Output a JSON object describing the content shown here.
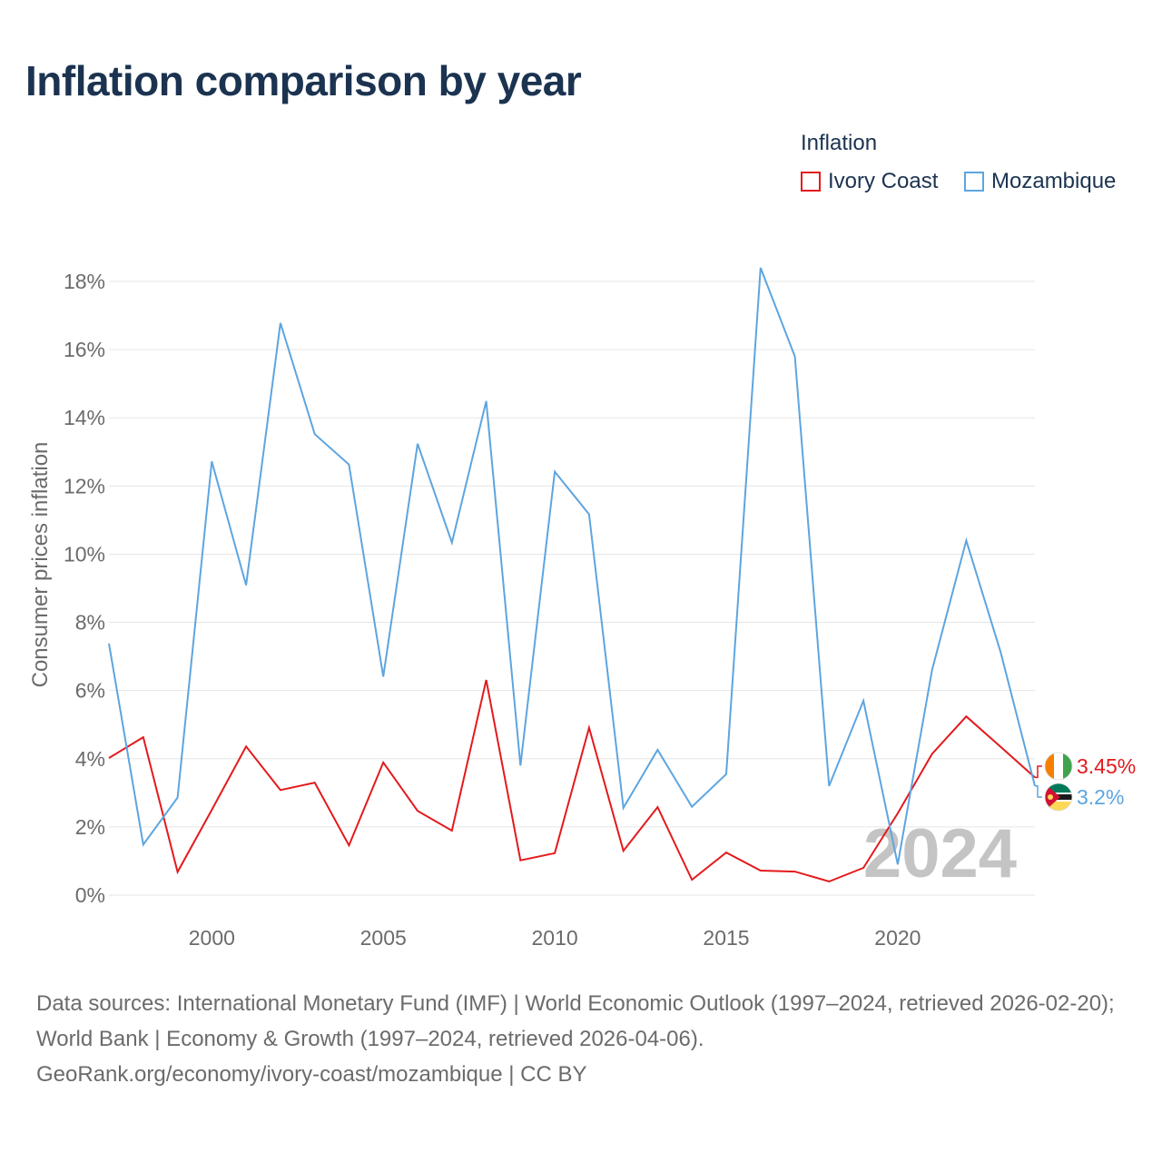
{
  "title": "Inflation comparison by year",
  "legend": {
    "title": "Inflation",
    "items": [
      {
        "name": "Ivory Coast",
        "color": "#e31a1c"
      },
      {
        "name": "Mozambique",
        "color": "#5da5e0"
      }
    ]
  },
  "chart_data": {
    "type": "line",
    "title": "Inflation comparison by year",
    "xlabel": "",
    "ylabel": "Consumer prices inflation",
    "x": [
      1997,
      1998,
      1999,
      2000,
      2001,
      2002,
      2003,
      2004,
      2005,
      2006,
      2007,
      2008,
      2009,
      2010,
      2011,
      2012,
      2013,
      2014,
      2015,
      2016,
      2017,
      2018,
      2019,
      2020,
      2021,
      2022,
      2023,
      2024
    ],
    "xlim": [
      1997,
      2024
    ],
    "ylim": [
      0,
      18
    ],
    "yticks": [
      0,
      2,
      4,
      6,
      8,
      10,
      12,
      14,
      16,
      18
    ],
    "ytick_labels": [
      "0%",
      "2%",
      "4%",
      "6%",
      "8%",
      "10%",
      "12%",
      "14%",
      "16%",
      "18%"
    ],
    "xticks": [
      2000,
      2005,
      2010,
      2015,
      2020
    ],
    "xtick_labels": [
      "2000",
      "2005",
      "2010",
      "2015",
      "2020"
    ],
    "grid": true,
    "year_watermark": "2024",
    "series": [
      {
        "name": "Ivory Coast",
        "color": "#e31a1c",
        "values": [
          4.02,
          4.63,
          0.68,
          2.5,
          4.36,
          3.08,
          3.3,
          1.46,
          3.89,
          2.47,
          1.89,
          6.31,
          1.02,
          1.23,
          4.91,
          1.3,
          2.58,
          0.45,
          1.25,
          0.72,
          0.69,
          0.4,
          0.8,
          2.4,
          4.14,
          5.24,
          4.35,
          3.45
        ],
        "end_label": "3.45%"
      },
      {
        "name": "Mozambique",
        "color": "#5da5e0",
        "values": [
          7.38,
          1.48,
          2.86,
          12.72,
          9.09,
          16.78,
          13.52,
          12.63,
          6.41,
          13.24,
          10.34,
          14.49,
          3.8,
          12.42,
          11.17,
          2.56,
          4.26,
          2.59,
          3.55,
          18.4,
          15.8,
          3.2,
          5.7,
          0.9,
          6.6,
          10.4,
          7.13,
          3.2
        ],
        "end_label": "3.2%"
      }
    ]
  },
  "source": {
    "line1": "Data sources: International Monetary Fund (IMF) | World Economic Outlook (1997–2024, retrieved 2026-02-20); World Bank | Economy & Growth (1997–2024, retrieved 2026-04-06).",
    "line2": "GeoRank.org/economy/ivory-coast/mozambique | CC BY"
  }
}
